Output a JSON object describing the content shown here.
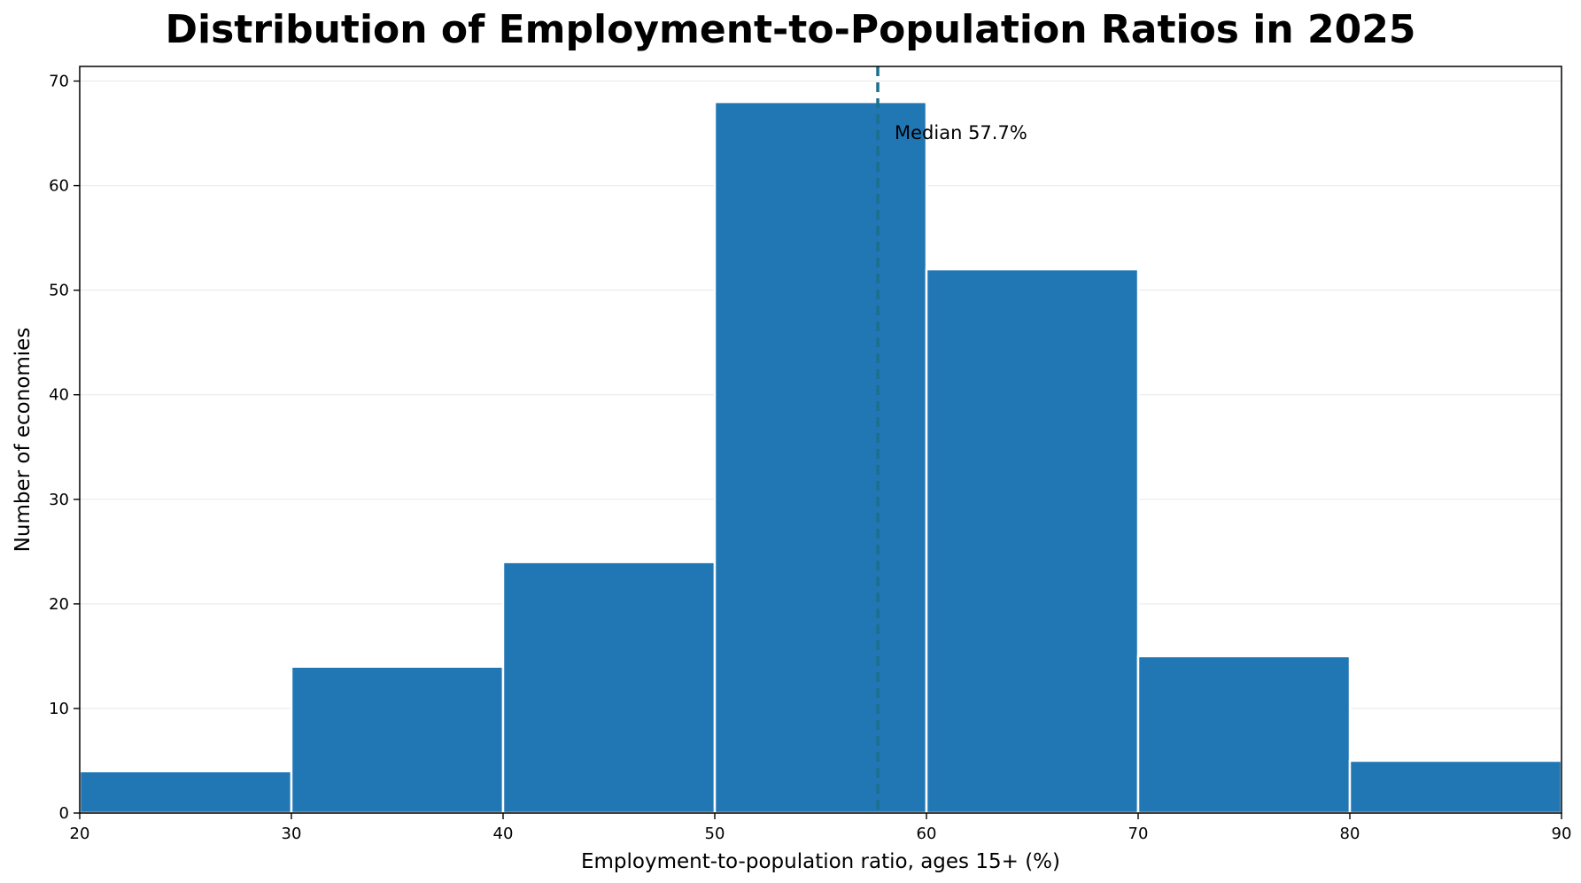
{
  "chart_data": {
    "type": "bar",
    "subtype": "histogram",
    "title": "Distribution of Employment-to-Population Ratios in 2025",
    "xlabel": "Employment-to-population ratio, ages 15+ (%)",
    "ylabel": "Number of economies",
    "bins": [
      {
        "start": 20,
        "end": 30,
        "count": 4
      },
      {
        "start": 30,
        "end": 40,
        "count": 14
      },
      {
        "start": 40,
        "end": 50,
        "count": 24
      },
      {
        "start": 50,
        "end": 60,
        "count": 68
      },
      {
        "start": 60,
        "end": 70,
        "count": 52
      },
      {
        "start": 70,
        "end": 80,
        "count": 15
      },
      {
        "start": 80,
        "end": 90,
        "count": 5
      }
    ],
    "xlim": [
      20,
      90
    ],
    "ylim": [
      0,
      71.4
    ],
    "xticks": [
      20,
      30,
      40,
      50,
      60,
      70,
      80,
      90
    ],
    "yticks": [
      0,
      10,
      20,
      30,
      40,
      50,
      60,
      70
    ],
    "grid": "horizontal",
    "bar_color": "#2077b4",
    "median": {
      "value": 57.7,
      "label": "Median 57.7%",
      "color": "#1b6f8f"
    }
  }
}
